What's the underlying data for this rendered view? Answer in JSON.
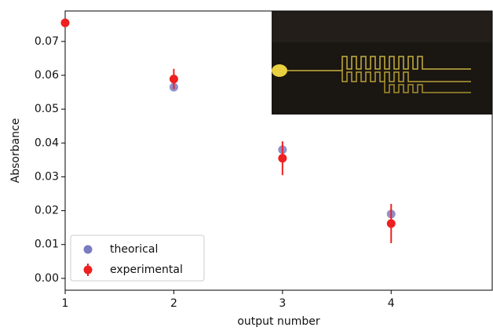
{
  "chart_data": {
    "type": "errorbar-scatter",
    "xlabel": "output number",
    "ylabel": "Absorbance",
    "xlim": [
      1,
      4.93
    ],
    "ylim": [
      -0.0035,
      0.079
    ],
    "xticks": [
      1,
      2,
      3,
      4
    ],
    "yticks": [
      {
        "value": 0,
        "label": "0.00"
      },
      0.01,
      0.02,
      0.03,
      0.04,
      0.05,
      0.06,
      0.07
    ],
    "legend": "lower left",
    "series": [
      {
        "name": "theorical",
        "color": "#7b7bc2",
        "x": [
          2,
          3,
          4
        ],
        "values": [
          0.0565,
          0.038,
          0.019
        ]
      },
      {
        "name": "experimental",
        "color": "#ee2020",
        "x": [
          1,
          2,
          3,
          4
        ],
        "values": [
          0.0755,
          0.0589,
          0.0355,
          0.0162
        ],
        "errors": [
          0.0008,
          0.003,
          0.005,
          0.0058
        ]
      }
    ]
  }
}
